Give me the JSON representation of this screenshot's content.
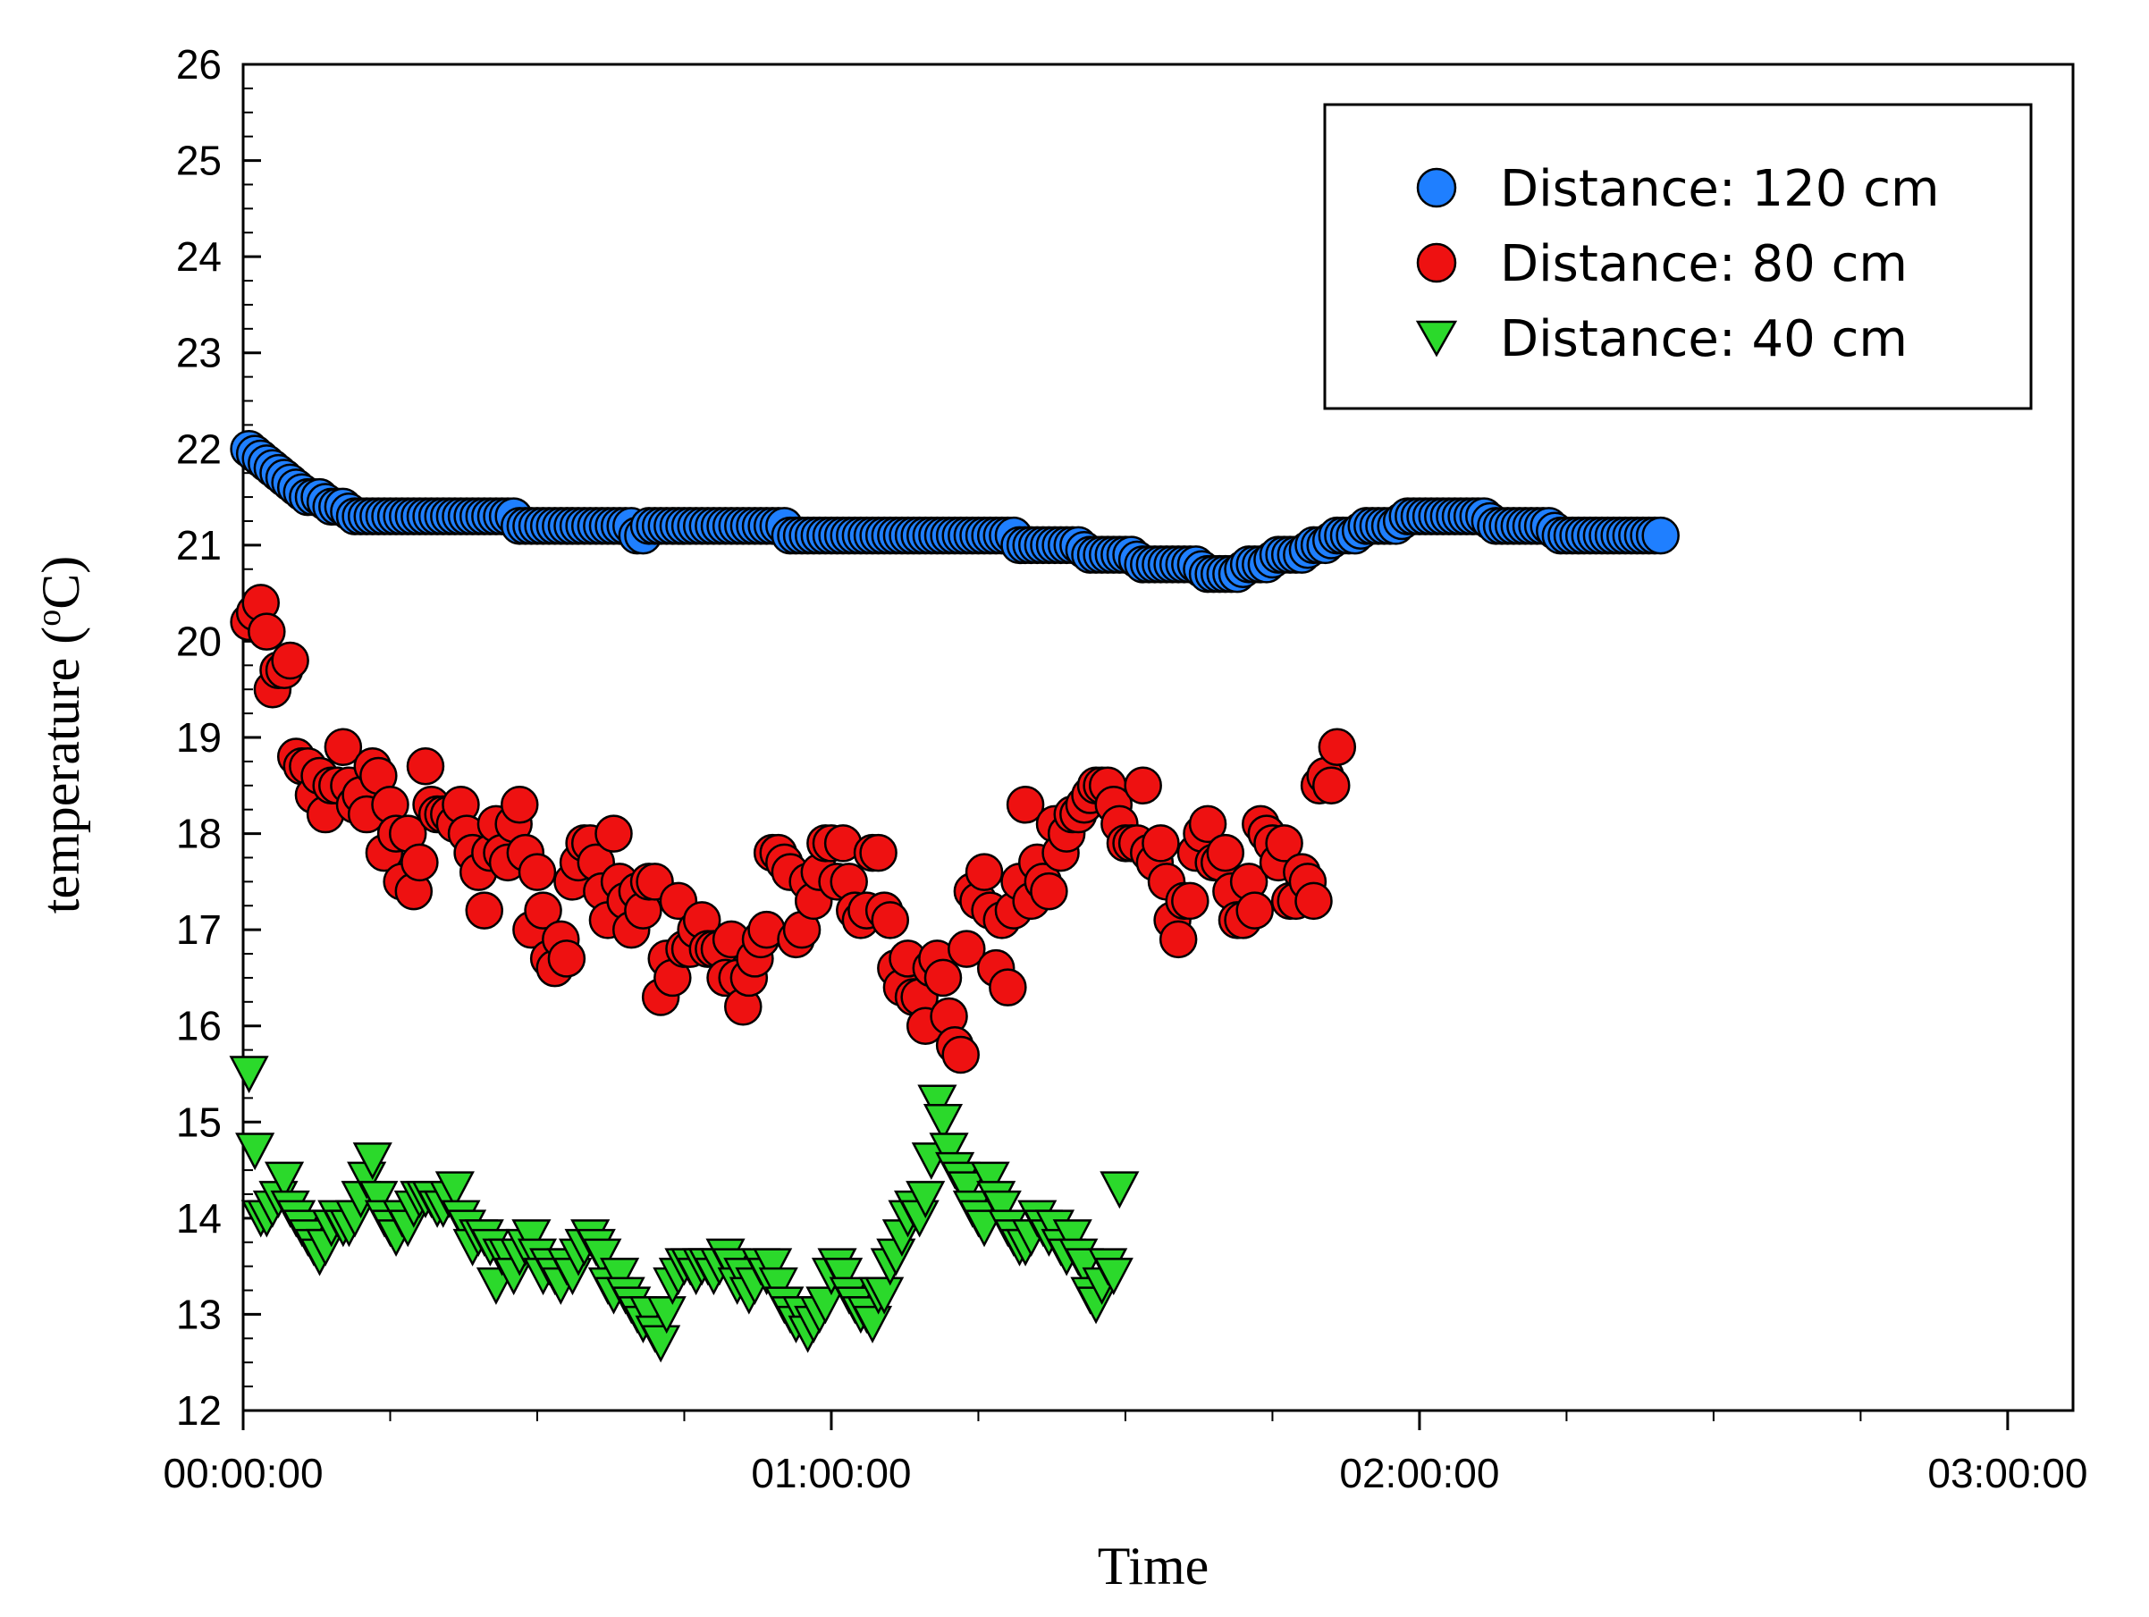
{
  "chart_data": {
    "type": "scatter",
    "title": "",
    "xlabel": "Time",
    "ylabel": "temperature (°C)",
    "ylabel_main": "temperature (",
    "ylabel_sup": "o",
    "ylabel_unit": "C)",
    "xlim": [
      0,
      11200
    ],
    "ylim": [
      12,
      26
    ],
    "x_unit": "seconds",
    "x_ticks": [
      0,
      3600,
      7200,
      10800
    ],
    "x_tick_labels": [
      "00:00:00",
      "01:00:00",
      "02:00:00",
      "03:00:00"
    ],
    "y_ticks": [
      12,
      13,
      14,
      15,
      16,
      17,
      18,
      19,
      20,
      21,
      22,
      23,
      24,
      25,
      26
    ],
    "y_tick_labels": [
      "12",
      "13",
      "14",
      "15",
      "16",
      "17",
      "18",
      "19",
      "20",
      "21",
      "22",
      "23",
      "24",
      "25",
      "26"
    ],
    "legend_position": "top-right",
    "sample_interval_s": 36,
    "series": [
      {
        "name": "Distance: 120 cm",
        "marker": "circle",
        "color": "#1f7fff",
        "x_start": 36,
        "x_step": 36,
        "values": [
          22.0,
          21.95,
          21.9,
          21.85,
          21.8,
          21.75,
          21.7,
          21.65,
          21.6,
          21.55,
          21.5,
          21.5,
          21.5,
          21.45,
          21.4,
          21.4,
          21.4,
          21.35,
          21.3,
          21.3,
          21.3,
          21.3,
          21.3,
          21.3,
          21.3,
          21.3,
          21.3,
          21.3,
          21.3,
          21.3,
          21.3,
          21.3,
          21.3,
          21.3,
          21.3,
          21.3,
          21.3,
          21.3,
          21.3,
          21.3,
          21.3,
          21.3,
          21.3,
          21.3,
          21.3,
          21.3,
          21.2,
          21.2,
          21.2,
          21.2,
          21.2,
          21.2,
          21.2,
          21.2,
          21.2,
          21.2,
          21.2,
          21.2,
          21.2,
          21.2,
          21.2,
          21.2,
          21.2,
          21.2,
          21.2,
          21.2,
          21.1,
          21.1,
          21.2,
          21.2,
          21.2,
          21.2,
          21.2,
          21.2,
          21.2,
          21.2,
          21.2,
          21.2,
          21.2,
          21.2,
          21.2,
          21.2,
          21.2,
          21.2,
          21.2,
          21.2,
          21.2,
          21.2,
          21.2,
          21.2,
          21.2,
          21.2,
          21.1,
          21.1,
          21.1,
          21.1,
          21.1,
          21.1,
          21.1,
          21.1,
          21.1,
          21.1,
          21.1,
          21.1,
          21.1,
          21.1,
          21.1,
          21.1,
          21.1,
          21.1,
          21.1,
          21.1,
          21.1,
          21.1,
          21.1,
          21.1,
          21.1,
          21.1,
          21.1,
          21.1,
          21.1,
          21.1,
          21.1,
          21.1,
          21.1,
          21.1,
          21.1,
          21.1,
          21.1,
          21.1,
          21.1,
          21.0,
          21.0,
          21.0,
          21.0,
          21.0,
          21.0,
          21.0,
          21.0,
          21.0,
          21.0,
          21.0,
          20.95,
          20.9,
          20.9,
          20.9,
          20.9,
          20.9,
          20.9,
          20.9,
          20.9,
          20.85,
          20.8,
          20.8,
          20.8,
          20.8,
          20.8,
          20.8,
          20.8,
          20.8,
          20.8,
          20.8,
          20.75,
          20.7,
          20.7,
          20.7,
          20.7,
          20.7,
          20.7,
          20.75,
          20.8,
          20.8,
          20.8,
          20.8,
          20.85,
          20.9,
          20.9,
          20.9,
          20.9,
          20.9,
          20.95,
          21.0,
          21.0,
          21.0,
          21.05,
          21.1,
          21.1,
          21.1,
          21.1,
          21.15,
          21.2,
          21.2,
          21.2,
          21.2,
          21.2,
          21.2,
          21.25,
          21.3,
          21.3,
          21.3,
          21.3,
          21.3,
          21.3,
          21.3,
          21.3,
          21.3,
          21.3,
          21.3,
          21.3,
          21.3,
          21.3,
          21.25,
          21.2,
          21.2,
          21.2,
          21.2,
          21.2,
          21.2,
          21.2,
          21.2,
          21.2,
          21.2,
          21.15,
          21.1,
          21.1,
          21.1,
          21.1,
          21.1,
          21.1,
          21.1,
          21.1,
          21.1,
          21.1,
          21.1,
          21.1,
          21.1,
          21.1,
          21.1,
          21.1,
          21.1,
          21.1
        ]
      },
      {
        "name": "Distance: 80 cm",
        "marker": "circle",
        "color": "#ee1111",
        "x_start": 36,
        "x_step": 36,
        "values": [
          20.2,
          20.3,
          20.4,
          20.1,
          19.5,
          19.7,
          19.7,
          19.8,
          18.8,
          18.7,
          18.7,
          18.4,
          18.6,
          18.2,
          18.5,
          18.5,
          18.9,
          18.5,
          18.3,
          18.4,
          18.2,
          18.7,
          18.6,
          17.8,
          18.3,
          18.0,
          17.5,
          18.0,
          17.4,
          17.7,
          18.7,
          18.3,
          18.2,
          18.2,
          18.2,
          18.1,
          18.3,
          18.0,
          17.8,
          17.6,
          17.2,
          17.8,
          18.1,
          17.8,
          17.7,
          18.1,
          18.3,
          17.8,
          17.0,
          17.6,
          17.2,
          16.7,
          16.6,
          16.9,
          16.7,
          17.5,
          17.7,
          17.9,
          17.9,
          17.7,
          17.4,
          17.1,
          18.0,
          17.5,
          17.3,
          17.0,
          17.4,
          17.2,
          17.5,
          17.5,
          16.3,
          16.7,
          16.5,
          17.3,
          16.8,
          16.8,
          17.0,
          17.1,
          16.8,
          16.8,
          16.8,
          16.5,
          16.9,
          16.5,
          16.2,
          16.5,
          16.7,
          16.9,
          17.0,
          17.8,
          17.8,
          17.7,
          17.6,
          16.9,
          17.0,
          17.5,
          17.3,
          17.6,
          17.9,
          17.9,
          17.5,
          17.9,
          17.5,
          17.2,
          17.1,
          17.2,
          17.8,
          17.8,
          17.2,
          17.1,
          16.6,
          16.4,
          16.7,
          16.3,
          16.3,
          16.0,
          16.6,
          16.7,
          16.5,
          16.1,
          15.8,
          15.7,
          16.8,
          17.4,
          17.3,
          17.6,
          17.2,
          16.6,
          17.1,
          16.4,
          17.2,
          17.5,
          18.3,
          17.3,
          17.7,
          17.5,
          17.4,
          18.1,
          17.8,
          18.0,
          18.2,
          18.2,
          18.3,
          18.4,
          18.5,
          18.5,
          18.5,
          18.3,
          18.1,
          17.9,
          17.9,
          17.9,
          18.5,
          17.8,
          17.7,
          17.9,
          17.5,
          17.1,
          16.9,
          17.3,
          17.3,
          17.8,
          18.0,
          18.1,
          17.7,
          17.7,
          17.8,
          17.4,
          17.1,
          17.1,
          17.5,
          17.2,
          18.1,
          18.0,
          17.9,
          17.7,
          17.9,
          17.3,
          17.3,
          17.6,
          17.5,
          17.3,
          18.5,
          18.6,
          18.5,
          18.9
        ]
      },
      {
        "name": "Distance: 40 cm",
        "marker": "triangle-down",
        "color": "#2bd92b",
        "x_start": 36,
        "x_step": 36,
        "values": [
          15.5,
          14.7,
          14.0,
          14.0,
          14.1,
          14.2,
          14.4,
          14.1,
          14.0,
          13.9,
          13.8,
          13.7,
          13.6,
          13.7,
          13.9,
          14.0,
          13.9,
          13.9,
          14.0,
          14.2,
          14.4,
          14.6,
          14.2,
          14.0,
          13.9,
          13.8,
          14.0,
          13.9,
          14.1,
          14.2,
          14.2,
          14.2,
          14.1,
          14.1,
          14.2,
          14.3,
          14.0,
          13.9,
          13.7,
          13.8,
          13.8,
          13.7,
          13.3,
          13.6,
          13.6,
          13.4,
          13.6,
          13.7,
          13.8,
          13.6,
          13.4,
          13.5,
          13.4,
          13.3,
          13.5,
          13.4,
          13.6,
          13.7,
          13.8,
          13.7,
          13.6,
          13.3,
          13.2,
          13.4,
          13.2,
          13.1,
          13.0,
          12.9,
          13.0,
          12.8,
          12.7,
          13.0,
          13.3,
          13.4,
          13.5,
          13.5,
          13.4,
          13.5,
          13.5,
          13.4,
          13.5,
          13.6,
          13.5,
          13.3,
          13.4,
          13.2,
          13.3,
          13.5,
          13.4,
          13.5,
          13.3,
          13.1,
          13.0,
          12.9,
          13.0,
          12.8,
          12.9,
          13.0,
          13.1,
          13.4,
          13.5,
          13.4,
          13.2,
          13.1,
          13.0,
          13.0,
          12.9,
          13.2,
          13.2,
          13.5,
          13.6,
          13.8,
          14.0,
          14.1,
          14.0,
          14.2,
          14.6,
          15.2,
          15.0,
          14.7,
          14.5,
          14.4,
          14.3,
          14.1,
          14.0,
          13.9,
          14.4,
          14.2,
          14.1,
          13.9,
          13.8,
          13.7,
          13.7,
          13.8,
          14.0,
          13.9,
          13.8,
          13.9,
          13.7,
          13.6,
          13.8,
          13.6,
          13.5,
          13.2,
          13.1,
          13.3,
          13.5,
          13.4,
          14.3
        ]
      }
    ]
  }
}
